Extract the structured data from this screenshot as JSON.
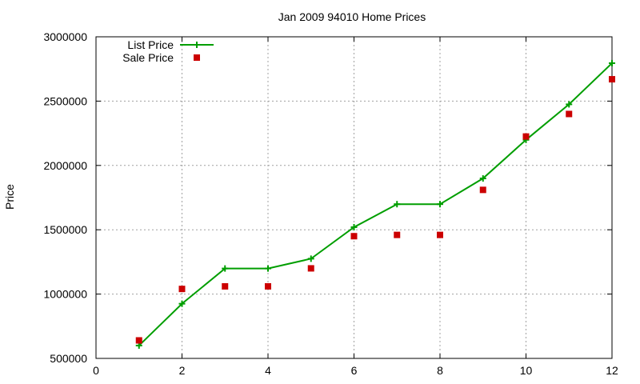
{
  "chart_data": {
    "type": "line",
    "title": "Jan 2009 94010 Home Prices",
    "xlabel": "",
    "ylabel": "Price",
    "xlim": [
      0,
      12
    ],
    "ylim": [
      500000,
      3000000
    ],
    "x_ticks": [
      0,
      2,
      4,
      6,
      8,
      10,
      12
    ],
    "y_ticks": [
      500000,
      1000000,
      1500000,
      2000000,
      2500000,
      3000000
    ],
    "x_tick_labels": [
      "0",
      "2",
      "4",
      "6",
      "8",
      "10",
      "12"
    ],
    "y_tick_labels": [
      "500000",
      "1000000",
      "1500000",
      "2000000",
      "2500000",
      "3000000"
    ],
    "grid": true,
    "legend_position": "top-left",
    "series": [
      {
        "name": "List Price",
        "style": "line+cross",
        "color": "#009e00",
        "x": [
          1,
          2,
          3,
          4,
          5,
          6,
          7,
          8,
          9,
          10,
          11,
          12
        ],
        "y": [
          600000,
          925000,
          1199000,
          1199000,
          1275000,
          1520000,
          1699000,
          1699000,
          1899000,
          2199000,
          2475000,
          2795000
        ]
      },
      {
        "name": "Sale Price",
        "style": "square",
        "color": "#cc0000",
        "x": [
          1,
          2,
          3,
          4,
          5,
          6,
          7,
          8,
          9,
          10,
          11,
          12
        ],
        "y": [
          640000,
          1040000,
          1060000,
          1060000,
          1200000,
          1450000,
          1460000,
          1460000,
          1810000,
          2225000,
          2400000,
          2670000
        ]
      }
    ]
  }
}
